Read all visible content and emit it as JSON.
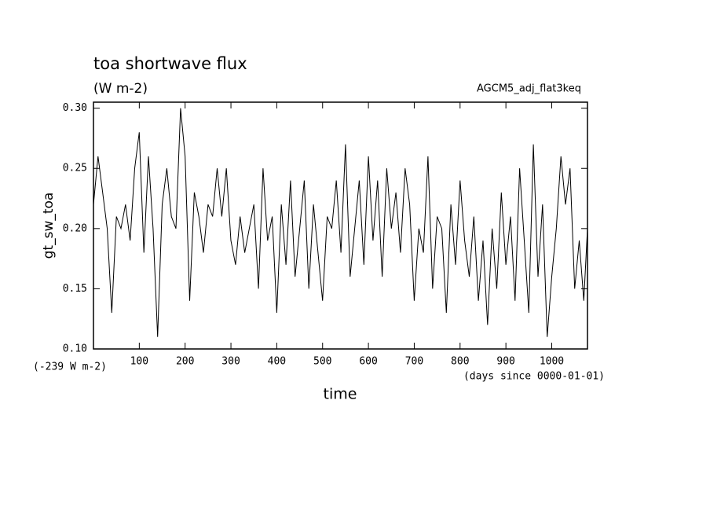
{
  "chart_data": {
    "type": "line",
    "title": "toa shortwave flux",
    "subtitle": "(W m-2)",
    "annotation": "AGCM5_adj_flat3keq",
    "ylabel": "gt_sw_toa",
    "xlabel": "time",
    "offset_note": "(-239 W m-2)",
    "units_note": "(days since 0000-01-01)",
    "x": [
      0,
      10,
      20,
      30,
      40,
      50,
      60,
      70,
      80,
      90,
      100,
      110,
      120,
      130,
      140,
      150,
      160,
      170,
      180,
      190,
      200,
      210,
      220,
      230,
      240,
      250,
      260,
      270,
      280,
      290,
      300,
      310,
      320,
      330,
      340,
      350,
      360,
      370,
      380,
      390,
      400,
      410,
      420,
      430,
      440,
      450,
      460,
      470,
      480,
      490,
      500,
      510,
      520,
      530,
      540,
      550,
      560,
      570,
      580,
      590,
      600,
      610,
      620,
      630,
      640,
      650,
      660,
      670,
      680,
      690,
      700,
      710,
      720,
      730,
      740,
      750,
      760,
      770,
      780,
      790,
      800,
      810,
      820,
      830,
      840,
      850,
      860,
      870,
      880,
      890,
      900,
      910,
      920,
      930,
      940,
      950,
      960,
      970,
      980,
      990,
      1000,
      1010,
      1020,
      1030,
      1040,
      1050,
      1060,
      1070,
      1078
    ],
    "series": [
      {
        "name": "gt_sw_toa",
        "color": "#000000",
        "values": [
          0.22,
          0.26,
          0.23,
          0.2,
          0.13,
          0.21,
          0.2,
          0.22,
          0.19,
          0.25,
          0.28,
          0.18,
          0.26,
          0.2,
          0.11,
          0.22,
          0.25,
          0.21,
          0.2,
          0.3,
          0.26,
          0.14,
          0.23,
          0.21,
          0.18,
          0.22,
          0.21,
          0.25,
          0.21,
          0.25,
          0.19,
          0.17,
          0.21,
          0.18,
          0.2,
          0.22,
          0.15,
          0.25,
          0.19,
          0.21,
          0.13,
          0.22,
          0.17,
          0.24,
          0.16,
          0.2,
          0.24,
          0.15,
          0.22,
          0.18,
          0.14,
          0.21,
          0.2,
          0.24,
          0.18,
          0.27,
          0.16,
          0.2,
          0.24,
          0.17,
          0.26,
          0.19,
          0.24,
          0.16,
          0.25,
          0.2,
          0.23,
          0.18,
          0.25,
          0.22,
          0.14,
          0.2,
          0.18,
          0.26,
          0.15,
          0.21,
          0.2,
          0.13,
          0.22,
          0.17,
          0.24,
          0.19,
          0.16,
          0.21,
          0.14,
          0.19,
          0.12,
          0.2,
          0.15,
          0.23,
          0.17,
          0.21,
          0.14,
          0.25,
          0.19,
          0.13,
          0.27,
          0.16,
          0.22,
          0.11,
          0.16,
          0.2,
          0.26,
          0.22,
          0.25,
          0.15,
          0.19,
          0.14,
          0.2
        ]
      }
    ],
    "xlim": [
      0,
      1078
    ],
    "ylim": [
      0.1,
      0.305
    ],
    "xticks": [
      100,
      200,
      300,
      400,
      500,
      600,
      700,
      800,
      900,
      1000
    ],
    "yticks": [
      {
        "value": 0.1,
        "label": "0.10"
      },
      {
        "value": 0.15,
        "label": "0.15"
      },
      {
        "value": 0.2,
        "label": "0.20"
      },
      {
        "value": 0.25,
        "label": "0.25"
      },
      {
        "value": 0.3,
        "label": "0.30"
      }
    ]
  }
}
